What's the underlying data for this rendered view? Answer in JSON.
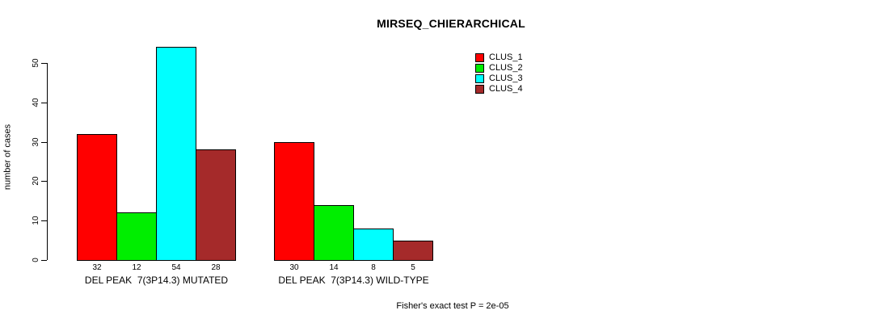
{
  "chart_data": {
    "type": "bar",
    "title": "MIRSEQ_CHIERARCHICAL",
    "ylabel": "number of cases",
    "xlabel": "",
    "ylim": [
      0,
      50
    ],
    "yticks": [
      0,
      10,
      20,
      30,
      40,
      50
    ],
    "grid": false,
    "legend_position": "top-right",
    "categories": [
      "DEL PEAK  7(3P14.3) MUTATED",
      "DEL PEAK  7(3P14.3) WILD-TYPE"
    ],
    "series": [
      {
        "name": "CLUS_1",
        "color": "#ff0000",
        "values": [
          32,
          30
        ]
      },
      {
        "name": "CLUS_2",
        "color": "#00ee00",
        "values": [
          12,
          14
        ]
      },
      {
        "name": "CLUS_3",
        "color": "#00ffff",
        "values": [
          54,
          8
        ]
      },
      {
        "name": "CLUS_4",
        "color": "#a52a2a",
        "values": [
          28,
          5
        ]
      }
    ],
    "bar_value_labels": [
      [
        32,
        12,
        54,
        28
      ],
      [
        30,
        14,
        8,
        5
      ]
    ],
    "annotation": "Fisher's exact test P = 2e-05"
  },
  "colors": {
    "axis": "#000000",
    "bar_border": "#000000",
    "background": "#ffffff"
  }
}
